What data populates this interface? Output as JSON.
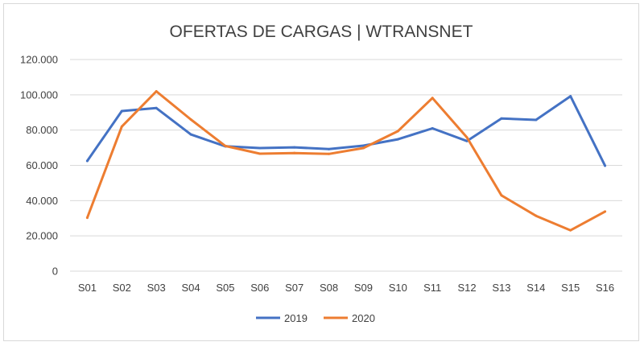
{
  "chart_data": {
    "type": "line",
    "title": "OFERTAS DE CARGAS | WTRANSNET",
    "xlabel": "",
    "ylabel": "",
    "categories": [
      "S01",
      "S02",
      "S03",
      "S04",
      "S05",
      "S06",
      "S07",
      "S08",
      "S09",
      "S10",
      "S11",
      "S12",
      "S13",
      "S14",
      "S15",
      "S16"
    ],
    "ylim": [
      0,
      120000
    ],
    "yticks": [
      0,
      20000,
      40000,
      60000,
      80000,
      100000,
      120000
    ],
    "ytick_labels": [
      "0",
      "20.000",
      "40.000",
      "60.000",
      "80.000",
      "100.000",
      "120.000"
    ],
    "grid": true,
    "legend_position": "bottom",
    "series": [
      {
        "name": "2019",
        "color": "#4472c4",
        "values": [
          62500,
          90800,
          92500,
          77500,
          70800,
          69800,
          70200,
          69200,
          71200,
          74800,
          81000,
          73800,
          86600,
          85800,
          99200,
          59800
        ]
      },
      {
        "name": "2020",
        "color": "#ed7d31",
        "values": [
          30300,
          82000,
          102000,
          86000,
          71000,
          66600,
          67000,
          66500,
          69800,
          79400,
          98200,
          75800,
          43000,
          31400,
          23200,
          33800
        ]
      }
    ]
  }
}
